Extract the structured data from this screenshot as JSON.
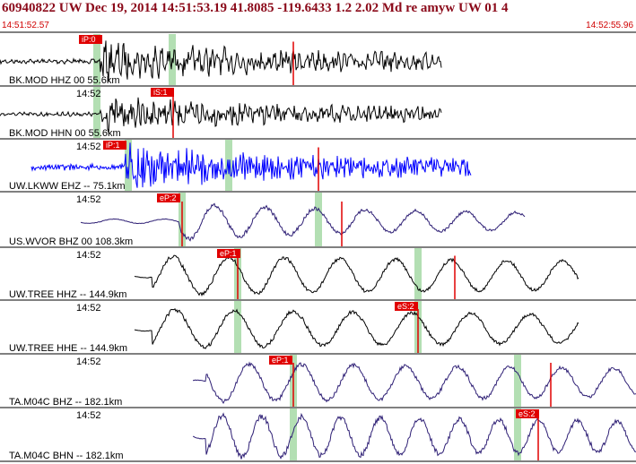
{
  "header": {
    "title": "60940822 UW Dec 19, 2014 14:51:53.19   41.8085 -119.6433  1.2 2.02 Md re amyw UW 01   4",
    "start_time": "14:51:52.57",
    "end_time": "14:52:55.96"
  },
  "traces": [
    {
      "label": "BK.MOD HHZ 00 55.6km",
      "pick": "iP:0"
    },
    {
      "label": "BK.MOD HHN 00 55.6km",
      "time_label": "14:52",
      "pick": "iS:1"
    },
    {
      "label": "UW.LKWW EHZ -- 75.1km",
      "time_label": "14:52",
      "pick": "iP:1"
    },
    {
      "label": "US.WVOR BHZ 00 108.3km",
      "time_label": "14:52",
      "pick": "eP:2"
    },
    {
      "label": "UW.TREE HHZ -- 144.9km",
      "time_label": "14:52",
      "pick": "eP:1"
    },
    {
      "label": "UW.TREE HHE -- 144.9km",
      "time_label": "14:52",
      "pick": "eS:2"
    },
    {
      "label": "TA.M04C BHZ -- 182.1km",
      "time_label": "14:52",
      "pick": "eP:1"
    },
    {
      "label": "TA.M04C BHN -- 182.1km",
      "time_label": "14:52",
      "pick": "eS:2"
    }
  ]
}
